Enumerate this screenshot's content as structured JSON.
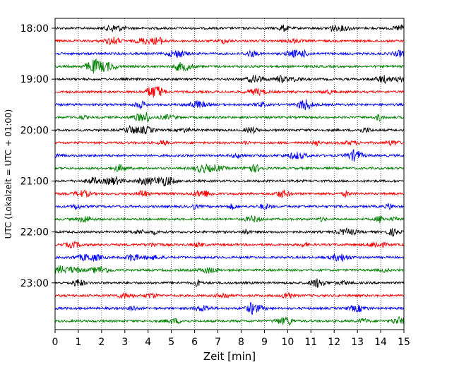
{
  "chart_data": {
    "type": "line",
    "xlabel": "Zeit  [min]",
    "ylabel": "UTC (Lokalzeit = UTC + 01:00)",
    "xlim": [
      0,
      15
    ],
    "x_ticks": [
      0,
      1,
      2,
      3,
      4,
      5,
      6,
      7,
      8,
      9,
      10,
      11,
      12,
      13,
      14,
      15
    ],
    "x_tick_labels": [
      "0",
      "1",
      "2",
      "3",
      "4",
      "5",
      "6",
      "7",
      "8",
      "9",
      "10",
      "11",
      "12",
      "13",
      "14",
      "15"
    ],
    "y_ticks": [
      {
        "label": "18:00",
        "row": 0
      },
      {
        "label": "19:00",
        "row": 4
      },
      {
        "label": "20:00",
        "row": 8
      },
      {
        "label": "21:00",
        "row": 12
      },
      {
        "label": "22:00",
        "row": 16
      },
      {
        "label": "23:00",
        "row": 20
      }
    ],
    "vertical_grid": true,
    "grid_style": "dotted",
    "trace_interval_min": 15,
    "trace_colors": [
      "#000000",
      "#ff0000",
      "#0000ff",
      "#008000"
    ],
    "traces": [
      {
        "start": "18:00"
      },
      {
        "start": "18:15"
      },
      {
        "start": "18:30"
      },
      {
        "start": "18:45"
      },
      {
        "start": "19:00"
      },
      {
        "start": "19:15"
      },
      {
        "start": "19:30"
      },
      {
        "start": "19:45"
      },
      {
        "start": "20:00"
      },
      {
        "start": "20:15"
      },
      {
        "start": "20:30"
      },
      {
        "start": "20:45"
      },
      {
        "start": "21:00"
      },
      {
        "start": "21:15"
      },
      {
        "start": "21:30"
      },
      {
        "start": "21:45"
      },
      {
        "start": "22:00"
      },
      {
        "start": "22:15"
      },
      {
        "start": "22:30"
      },
      {
        "start": "22:45"
      },
      {
        "start": "23:00"
      },
      {
        "start": "23:15"
      },
      {
        "start": "23:30"
      },
      {
        "start": "23:45"
      }
    ]
  }
}
